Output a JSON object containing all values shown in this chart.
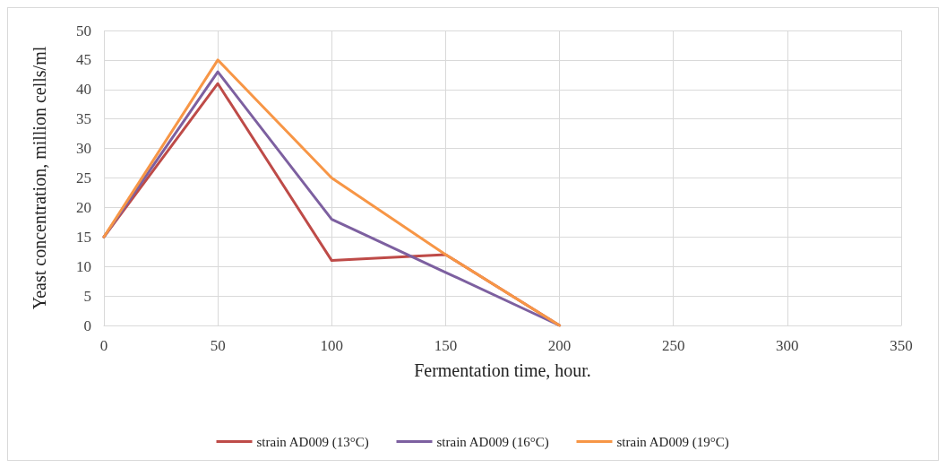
{
  "chart_data": {
    "type": "line",
    "xlabel": "Fermentation time, hour.",
    "ylabel": "Yeast concentration, million cells/ml",
    "x": [
      0,
      50,
      100,
      150,
      200
    ],
    "series": [
      {
        "name": "strain AD009 (13°C)",
        "color": "#be4b48",
        "values": [
          15,
          41,
          11,
          12,
          0
        ]
      },
      {
        "name": "strain AD009 (16°C)",
        "color": "#7d60a0",
        "values": [
          15,
          43,
          18,
          9,
          0
        ]
      },
      {
        "name": "strain AD009 (19°C)",
        "color": "#f79646",
        "values": [
          15,
          45,
          25,
          12,
          0
        ]
      }
    ],
    "xlim": [
      0,
      350
    ],
    "xticks": [
      0,
      50,
      100,
      150,
      200,
      250,
      300,
      350
    ],
    "ylim": [
      0,
      50
    ],
    "yticks": [
      0,
      5,
      10,
      15,
      20,
      25,
      30,
      35,
      40,
      45,
      50
    ],
    "grid": true,
    "legend": "bottom",
    "marker": "none",
    "line_style": "solid"
  }
}
